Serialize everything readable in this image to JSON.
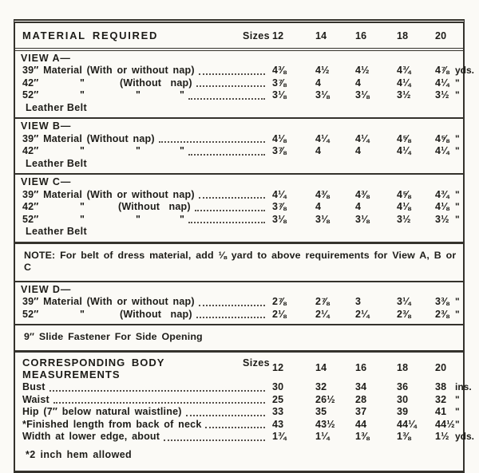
{
  "header": {
    "title": "MATERIAL REQUIRED",
    "sizes_label": "Sizes",
    "sizes": [
      "12",
      "14",
      "16",
      "18",
      "20"
    ]
  },
  "material": {
    "blocks": [
      {
        "type": "view",
        "id": "view-a-section",
        "title": "VIEW A—",
        "rows": [
          {
            "label": [
              {
                "t": "39″ Material (With or without nap)"
              }
            ],
            "values": [
              "4⅜",
              "4½",
              "4½",
              "4¾",
              "4⅞"
            ],
            "unit": "yds."
          },
          {
            "label": [
              {
                "t": "42″",
                "w": 72
              },
              {
                "t": "\"",
                "w": 50
              },
              {
                "t": "(Without  nap)"
              }
            ],
            "values": [
              "3⅞",
              "4",
              "4",
              "4¼",
              "4¼"
            ],
            "unit": "\""
          },
          {
            "label": [
              {
                "t": "52″",
                "w": 72
              },
              {
                "t": "\"",
                "w": 70
              },
              {
                "t": "\"",
                "w": 55
              },
              {
                "t": "\""
              }
            ],
            "values": [
              "3⅛",
              "3⅛",
              "3⅛",
              "3½",
              "3½"
            ],
            "unit": "\""
          }
        ],
        "footer": "Leather Belt"
      },
      {
        "type": "view",
        "id": "view-b-section",
        "title": "VIEW B—",
        "rows": [
          {
            "label": [
              {
                "t": "39″ Material (Without nap)"
              }
            ],
            "values": [
              "4⅛",
              "4¼",
              "4¼",
              "4⅝",
              "4⅝"
            ],
            "unit": "\""
          },
          {
            "label": [
              {
                "t": "42″",
                "w": 72
              },
              {
                "t": "\"",
                "w": 70
              },
              {
                "t": "\"",
                "w": 55
              },
              {
                "t": "\""
              }
            ],
            "values": [
              "3⅞",
              "4",
              "4",
              "4¼",
              "4¼"
            ],
            "unit": "\""
          }
        ],
        "footer": "Leather Belt"
      },
      {
        "type": "view",
        "id": "view-c-section",
        "title": "VIEW C—",
        "thick": true,
        "rows": [
          {
            "label": [
              {
                "t": "39″ Material (With or without nap)"
              }
            ],
            "values": [
              "4¼",
              "4⅜",
              "4⅜",
              "4⅝",
              "4¾"
            ],
            "unit": "\""
          },
          {
            "label": [
              {
                "t": "42″",
                "w": 72
              },
              {
                "t": "\"",
                "w": 48
              },
              {
                "t": "(Without  nap)"
              }
            ],
            "values": [
              "3⅞",
              "4",
              "4",
              "4⅛",
              "4⅛"
            ],
            "unit": "\""
          },
          {
            "label": [
              {
                "t": "52″",
                "w": 72
              },
              {
                "t": "\"",
                "w": 70
              },
              {
                "t": "\"",
                "w": 55
              },
              {
                "t": "\""
              }
            ],
            "values": [
              "3⅛",
              "3⅛",
              "3⅛",
              "3½",
              "3½"
            ],
            "unit": "\""
          }
        ],
        "footer": "Leather Belt"
      },
      {
        "type": "note",
        "id": "belt-note",
        "text": "NOTE: For belt of dress material, add ⅛ yard to above requirements for View A, B or C"
      },
      {
        "type": "view",
        "id": "view-d-section",
        "title": "VIEW D—",
        "rows": [
          {
            "label": [
              {
                "t": "39″ Material (With or without nap)"
              }
            ],
            "values": [
              "2⅞",
              "2⅞",
              "3",
              "3¼",
              "3⅜"
            ],
            "unit": "\""
          },
          {
            "label": [
              {
                "t": "52″",
                "w": 72
              },
              {
                "t": "\"",
                "w": 50
              },
              {
                "t": "(Without  nap)"
              }
            ],
            "values": [
              "2⅛",
              "2¼",
              "2¼",
              "2⅜",
              "2⅜"
            ],
            "unit": "\""
          }
        ]
      },
      {
        "type": "note",
        "id": "fastener-note",
        "thick": true,
        "text": "9″ Slide Fastener For Side Opening"
      }
    ]
  },
  "body": {
    "title_line1": "CORRESPONDING BODY",
    "title_line2": "MEASUREMENTS",
    "sizes_label": "Sizes",
    "sizes": [
      "12",
      "14",
      "16",
      "18",
      "20"
    ],
    "rows": [
      {
        "label": [
          {
            "t": "Bust"
          }
        ],
        "values": [
          "30",
          "32",
          "34",
          "36",
          "38"
        ],
        "unit": "ins."
      },
      {
        "label": [
          {
            "t": "Waist"
          }
        ],
        "values": [
          "25",
          "26½",
          "28",
          "30",
          "32"
        ],
        "unit": "\""
      },
      {
        "label": [
          {
            "t": "Hip (7″ below natural waistline)"
          }
        ],
        "values": [
          "33",
          "35",
          "37",
          "39",
          "41"
        ],
        "unit": "\""
      },
      {
        "label": [
          {
            "t": "*Finished length from back of neck"
          }
        ],
        "values": [
          "43",
          "43½",
          "44",
          "44¼",
          "44½"
        ],
        "unit": "\""
      },
      {
        "label": [
          {
            "t": "Width at lower edge, about"
          }
        ],
        "values": [
          "1¾",
          "1¼",
          "1⅜",
          "1⅜",
          "1½"
        ],
        "unit": "yds."
      }
    ],
    "footnote": "*2 inch hem allowed"
  }
}
